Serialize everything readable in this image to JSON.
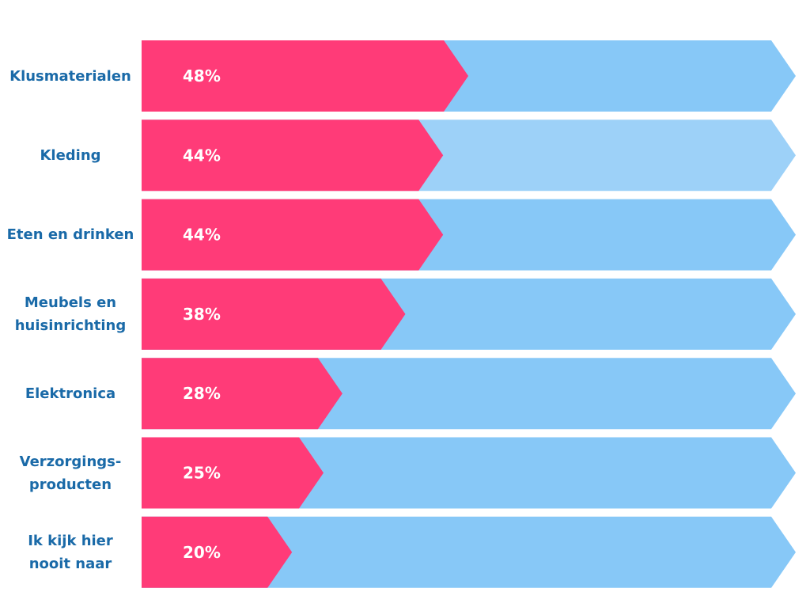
{
  "colors": {
    "pink": "#ff3b78",
    "blue": "#87c8f7",
    "blue_light": "#9dd1f8",
    "label": "#1a6aa8",
    "value_text": "#ffffff"
  },
  "chart_data": {
    "type": "bar",
    "orientation": "horizontal",
    "categories": [
      [
        "Klusmaterialen"
      ],
      [
        "Kleding"
      ],
      [
        "Eten en drinken"
      ],
      [
        "Meubels en",
        "huisinrichting"
      ],
      [
        "Elektronica"
      ],
      [
        "Verzorgings-",
        "producten"
      ],
      [
        "Ik kijk hier",
        "nooit naar"
      ]
    ],
    "values": [
      48,
      44,
      44,
      38,
      28,
      25,
      20
    ],
    "value_labels": [
      "48%",
      "44%",
      "44%",
      "38%",
      "28%",
      "25%",
      "20%"
    ],
    "xlim": [
      0,
      100
    ],
    "highlighted_index": 1,
    "grid": false,
    "legend": "none"
  }
}
